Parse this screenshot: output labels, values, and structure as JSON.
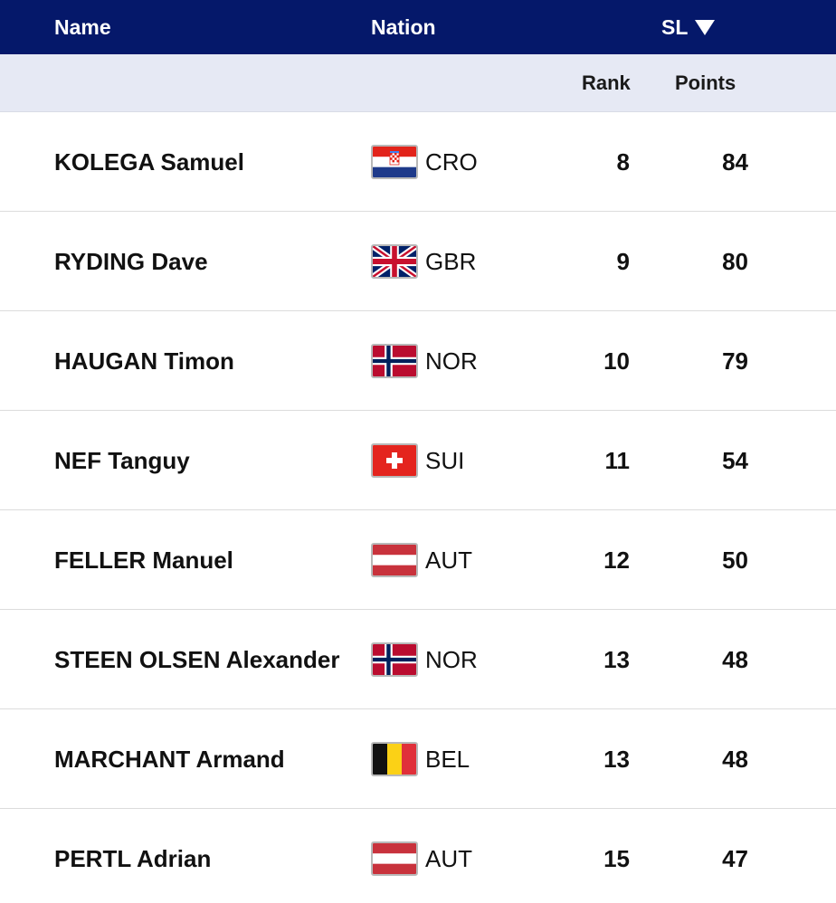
{
  "header": {
    "name": "Name",
    "nation": "Nation",
    "discipline": "SL"
  },
  "subheader": {
    "rank": "Rank",
    "points": "Points"
  },
  "colors": {
    "header_bg": "#05186a",
    "subheader_bg": "#e6e9f4"
  },
  "rows": [
    {
      "name": "KOLEGA Samuel",
      "nation": "CRO",
      "flag": "croatia-flag",
      "rank": "8",
      "points": "84"
    },
    {
      "name": "RYDING Dave",
      "nation": "GBR",
      "flag": "uk-flag",
      "rank": "9",
      "points": "80"
    },
    {
      "name": "HAUGAN Timon",
      "nation": "NOR",
      "flag": "norway-flag",
      "rank": "10",
      "points": "79"
    },
    {
      "name": "NEF Tanguy",
      "nation": "SUI",
      "flag": "switzerland-flag",
      "rank": "11",
      "points": "54"
    },
    {
      "name": "FELLER Manuel",
      "nation": "AUT",
      "flag": "austria-flag",
      "rank": "12",
      "points": "50"
    },
    {
      "name": "STEEN OLSEN Alexander",
      "nation": "NOR",
      "flag": "norway-flag",
      "rank": "13",
      "points": "48"
    },
    {
      "name": "MARCHANT Armand",
      "nation": "BEL",
      "flag": "belgium-flag",
      "rank": "13",
      "points": "48"
    },
    {
      "name": "PERTL Adrian",
      "nation": "AUT",
      "flag": "austria-flag",
      "rank": "15",
      "points": "47"
    }
  ]
}
